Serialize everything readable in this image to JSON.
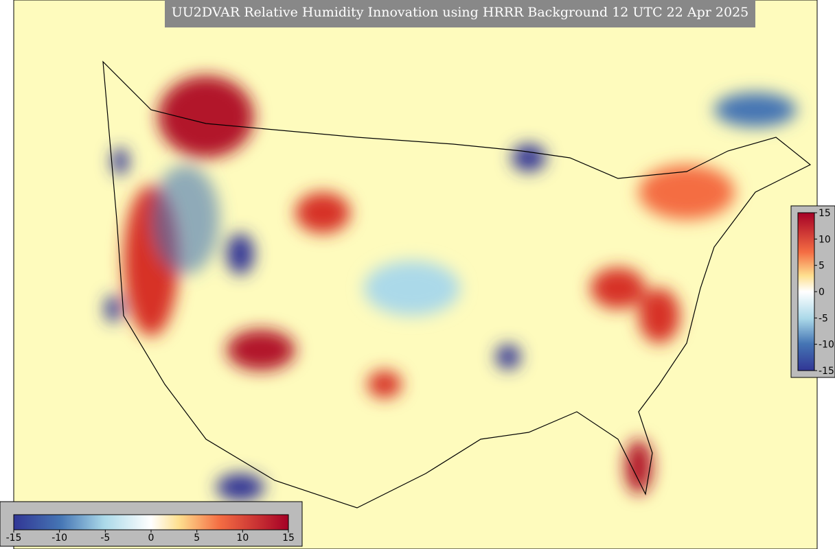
{
  "title": "UU2DVAR Relative Humidity Innovation using HRRR Background 12 UTC 22 Apr 2025",
  "colorbar_right": {
    "ticks": [
      15,
      10,
      5,
      0,
      -5,
      -10,
      -15
    ]
  },
  "colorbar_bottom": {
    "ticks": [
      -15,
      -10,
      -5,
      0,
      5,
      10,
      15
    ]
  }
}
